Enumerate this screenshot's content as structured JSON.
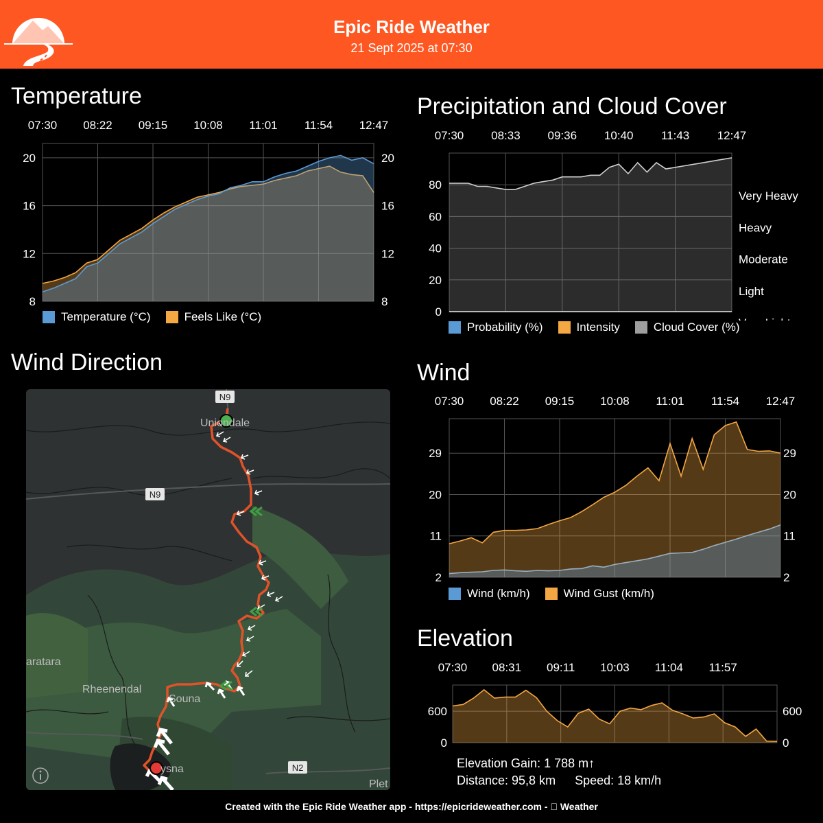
{
  "header": {
    "title": "Epic Ride Weather",
    "subtitle": "21 Sept 2025 at 07:30",
    "accent": "#ff5722"
  },
  "sections": {
    "temperature": "Temperature",
    "precip": "Precipitation and Cloud Cover",
    "wind_direction": "Wind Direction",
    "wind": "Wind",
    "elevation": "Elevation"
  },
  "legends": {
    "temperature": [
      {
        "label": "Temperature (°C)",
        "color": "#5b9bd5"
      },
      {
        "label": "Feels Like (°C)",
        "color": "#f4a742"
      }
    ],
    "precip": [
      {
        "label": "Probability (%)",
        "color": "#5b9bd5"
      },
      {
        "label": "Intensity",
        "color": "#f4a742"
      },
      {
        "label": "Cloud Cover (%)",
        "color": "#9e9e9e"
      }
    ],
    "wind": [
      {
        "label": "Wind (km/h)",
        "color": "#5b9bd5"
      },
      {
        "label": "Wind Gust (km/h)",
        "color": "#f4a742"
      }
    ]
  },
  "map": {
    "labels": {
      "uniondale": "Uniondale",
      "rheenendal": "Rheenendal",
      "sauna": "Souna",
      "knysna": "ysna",
      "karatara": "aratara",
      "plett": "Plet",
      "n9_top": "N9",
      "n9_mid": "N9",
      "n2": "N2"
    },
    "info_icon": "info-icon",
    "route_color": "#e0522a",
    "start_color": "#4caf50",
    "end_color": "#e53935"
  },
  "elevation_stats": {
    "gain": "Elevation Gain: 1 788 m↑",
    "distance": "Distance: 95,8 km",
    "speed": "Speed: 18 km/h"
  },
  "footer": "Created with the Epic Ride Weather app - https://epicrideweather.com -  Weather",
  "chart_data": [
    {
      "id": "temperature",
      "type": "area",
      "x_ticks": [
        "07:30",
        "08:22",
        "09:15",
        "10:08",
        "11:01",
        "11:54",
        "12:47"
      ],
      "ylim": [
        8,
        21.2
      ],
      "y_ticks": [
        8,
        12,
        16,
        20
      ],
      "grid": true,
      "legend": "bottom",
      "series": [
        {
          "name": "Temperature (°C)",
          "color": "#5b9bd5",
          "values": [
            8.8,
            9.1,
            9.5,
            9.9,
            10.9,
            11.2,
            12.0,
            12.8,
            13.3,
            13.8,
            14.5,
            15.1,
            15.7,
            16.1,
            16.5,
            16.8,
            17.0,
            17.5,
            17.7,
            18.0,
            18.0,
            18.4,
            18.7,
            18.9,
            19.3,
            19.7,
            20.0,
            20.2,
            19.8,
            20.0,
            19.5
          ]
        },
        {
          "name": "Feels Like (°C)",
          "color": "#f4a742",
          "values": [
            9.5,
            9.7,
            10.0,
            10.4,
            11.2,
            11.5,
            12.3,
            13.1,
            13.6,
            14.1,
            14.8,
            15.4,
            15.9,
            16.3,
            16.7,
            16.9,
            17.1,
            17.4,
            17.6,
            17.7,
            17.8,
            18.1,
            18.3,
            18.5,
            18.9,
            19.1,
            19.3,
            18.8,
            18.6,
            18.5,
            17.1
          ]
        }
      ]
    },
    {
      "id": "precip",
      "type": "area",
      "x_ticks": [
        "07:30",
        "08:33",
        "09:36",
        "10:40",
        "11:43",
        "12:47"
      ],
      "ylim": [
        0,
        100
      ],
      "y_ticks": [
        0,
        20,
        40,
        60,
        80
      ],
      "right_ticks": [
        "Very Light",
        "Light",
        "Moderate",
        "Heavy",
        "Very Heavy"
      ],
      "grid": true,
      "legend": "bottom",
      "series": [
        {
          "name": "Probability (%)",
          "color": "#5b9bd5",
          "values": [
            0,
            0,
            0,
            0,
            0,
            0,
            0,
            0,
            0,
            0,
            0,
            0,
            0,
            0,
            0,
            0,
            0,
            0,
            0,
            0,
            0,
            0,
            0,
            0,
            0,
            0,
            0,
            0,
            0,
            0,
            0
          ]
        },
        {
          "name": "Intensity",
          "color": "#f4a742",
          "values": [
            0,
            0,
            0,
            0,
            0,
            0,
            0,
            0,
            0,
            0,
            0,
            0,
            0,
            0,
            0,
            0,
            0,
            0,
            0,
            0,
            0,
            0,
            0,
            0,
            0,
            0,
            0,
            0,
            0,
            0,
            0
          ]
        },
        {
          "name": "Cloud Cover (%)",
          "color": "#9e9e9e",
          "values": [
            81,
            81,
            81,
            79,
            79,
            78,
            77,
            77,
            79,
            81,
            82,
            83,
            85,
            85,
            85,
            86,
            86,
            91,
            93,
            87,
            94,
            88,
            94,
            90,
            91,
            92,
            93,
            94,
            95,
            96,
            97
          ]
        }
      ]
    },
    {
      "id": "wind",
      "type": "area",
      "x_ticks": [
        "07:30",
        "08:22",
        "09:15",
        "10:08",
        "11:01",
        "11:54",
        "12:47"
      ],
      "ylim": [
        2,
        36.5
      ],
      "y_ticks": [
        2,
        11,
        20,
        29
      ],
      "grid": true,
      "legend": "bottom",
      "series": [
        {
          "name": "Wind (km/h)",
          "color": "#5b9bd5",
          "values": [
            2.8,
            3.0,
            3.1,
            3.2,
            3.5,
            3.6,
            3.4,
            3.3,
            3.5,
            3.4,
            3.5,
            3.8,
            3.9,
            4.5,
            4.2,
            4.8,
            5.2,
            5.6,
            6.0,
            6.6,
            7.2,
            7.3,
            7.4,
            8.1,
            8.9,
            9.6,
            10.3,
            11.1,
            11.8,
            12.5,
            13.4
          ]
        },
        {
          "name": "Wind Gust (km/h)",
          "color": "#f4a742",
          "values": [
            9.3,
            9.9,
            10.6,
            9.5,
            11.8,
            12.2,
            12.2,
            12.3,
            12.6,
            13.5,
            14.3,
            15.0,
            16.3,
            17.8,
            19.4,
            20.5,
            22.0,
            24.0,
            25.8,
            23.0,
            31.1,
            24.0,
            32.2,
            25.5,
            33.0,
            35.0,
            35.8,
            29.8,
            29.4,
            29.5,
            29.0
          ]
        }
      ]
    },
    {
      "id": "elevation",
      "type": "area",
      "x_ticks": [
        "07:30",
        "08:31",
        "09:11",
        "10:03",
        "11:04",
        "11:57"
      ],
      "ylim": [
        0,
        1100
      ],
      "y_ticks": [
        0,
        600
      ],
      "grid": true,
      "series": [
        {
          "name": "",
          "color": "#f4a742",
          "values": [
            700,
            730,
            850,
            1010,
            850,
            870,
            870,
            1000,
            860,
            600,
            420,
            300,
            560,
            640,
            450,
            360,
            600,
            660,
            630,
            710,
            760,
            620,
            550,
            470,
            490,
            550,
            380,
            300,
            120,
            260,
            30,
            25
          ]
        }
      ]
    }
  ]
}
